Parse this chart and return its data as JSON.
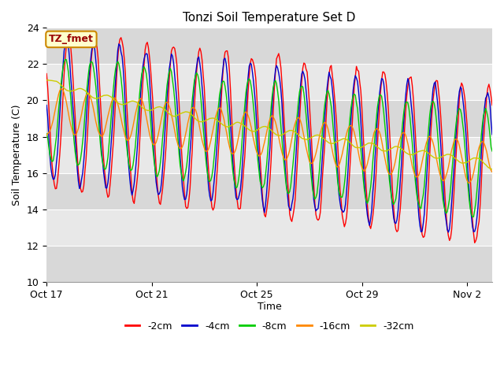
{
  "title": "Tonzi Soil Temperature Set D",
  "xlabel": "Time",
  "ylabel": "Soil Temperature (C)",
  "ylim": [
    10,
    24
  ],
  "yticks": [
    10,
    12,
    14,
    16,
    18,
    20,
    22,
    24
  ],
  "legend_labels": [
    "-2cm",
    "-4cm",
    "-8cm",
    "-16cm",
    "-32cm"
  ],
  "legend_colors": [
    "#ff0000",
    "#0000cc",
    "#00cc00",
    "#ff8800",
    "#cccc00"
  ],
  "annotation_text": "TZ_fmet",
  "annotation_bg": "#ffffcc",
  "annotation_border": "#cc8800",
  "annotation_text_color": "#990000",
  "band_colors": [
    "#d8d8d8",
    "#e8e8e8"
  ],
  "start_date": "2000-10-17",
  "n_hours": 408,
  "xtick_labels": [
    "Oct 17",
    "Oct 21",
    "Oct 25",
    "Oct 29",
    "Nov 2"
  ],
  "xtick_offsets_days": [
    0,
    4,
    8,
    12,
    16
  ]
}
